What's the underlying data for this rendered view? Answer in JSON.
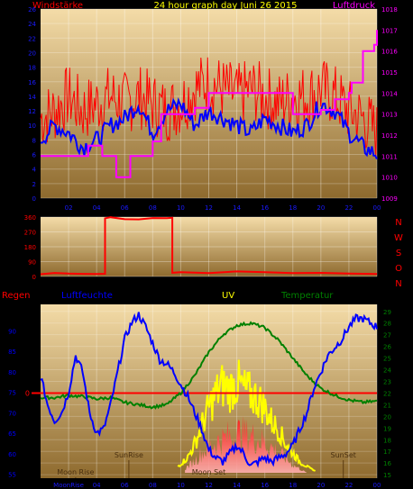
{
  "colors": {
    "background": "#000000",
    "plot_bg_top": "#f4dca8",
    "plot_bg_bottom": "#8e6a2e",
    "wind": "#ff0000",
    "wind_avg": "#0000ff",
    "pressure": "#ff00ff",
    "direction": "#ff0000",
    "humidity": "#0000ff",
    "temperature": "#008000",
    "uv": "#ffff00",
    "axis_blue": "#0000ff",
    "axis_red": "#ff0000",
    "axis_magenta": "#ff00ff",
    "axis_green": "#008000",
    "title_yellow": "#ffff00",
    "tick_text": "#1a1aff"
  },
  "chart_data": [
    {
      "type": "line",
      "title": "24 hour graph day   Juni 26 2015",
      "left_label": "Windstärke",
      "right_label": "Luftdruck",
      "x_ticks": [
        "02",
        "04",
        "06",
        "08",
        "10",
        "12",
        "14",
        "16",
        "18",
        "20",
        "22",
        "00"
      ],
      "y_left": {
        "ticks": [
          0,
          2,
          4,
          6,
          8,
          10,
          12,
          14,
          16,
          18,
          20,
          22,
          24,
          26
        ],
        "lim": [
          0,
          26
        ]
      },
      "y_right": {
        "ticks": [
          1009,
          1010,
          1011,
          1012,
          1013,
          1014,
          1015,
          1016,
          1017,
          1018
        ],
        "lim": [
          1009,
          1018
        ]
      },
      "series": [
        {
          "key": "gust",
          "hours": [
            0,
            1,
            2,
            3,
            4,
            5,
            6,
            7,
            8,
            9,
            10,
            11,
            12,
            13,
            14,
            15,
            16,
            17,
            18,
            19,
            20,
            21,
            22,
            23,
            24
          ],
          "values": [
            11,
            12,
            14,
            12,
            13,
            14,
            13,
            14,
            13,
            12,
            13,
            15,
            16,
            15,
            14,
            15,
            14,
            13,
            14,
            14,
            15,
            14,
            12,
            11,
            9
          ]
        },
        {
          "key": "avg",
          "hours": [
            0,
            1,
            2,
            3,
            4,
            5,
            6,
            7,
            8,
            9,
            10,
            11,
            12,
            13,
            14,
            15,
            16,
            17,
            18,
            19,
            20,
            21,
            22,
            23,
            24
          ],
          "values": [
            8,
            10,
            9,
            7,
            8,
            10,
            11,
            13,
            9,
            12,
            13,
            10,
            12,
            11,
            10,
            9,
            11,
            10,
            9,
            10,
            13,
            12,
            9,
            7,
            6
          ]
        },
        {
          "key": "pressure",
          "hours": [
            0,
            1,
            2,
            3,
            3.4,
            4,
            4.4,
            5,
            5.4,
            6,
            6.4,
            7,
            8,
            8.6,
            10,
            11,
            12,
            13,
            14,
            15,
            16,
            17,
            18,
            20,
            21,
            22,
            22.2,
            23,
            23.8,
            24
          ],
          "values": [
            1011,
            1011,
            1011,
            1011,
            1011.5,
            1011.5,
            1011,
            1011,
            1010,
            1010,
            1011,
            1011,
            1011.7,
            1013,
            1013,
            1013.3,
            1014,
            1014,
            1014,
            1014,
            1014,
            1014,
            1013,
            1013.2,
            1013.7,
            1014,
            1014.5,
            1016,
            1016.3,
            1017
          ]
        }
      ]
    },
    {
      "type": "line",
      "right_labels": [
        "N",
        "W",
        "S",
        "O",
        "N"
      ],
      "y_left": {
        "ticks": [
          0,
          90,
          180,
          270,
          360
        ],
        "lim": [
          0,
          360
        ]
      },
      "series": [
        {
          "key": "direction",
          "hours": [
            0,
            1,
            2,
            3,
            4,
            4.6,
            4.6,
            5,
            6,
            7,
            8,
            9,
            9.4,
            9.4,
            10,
            12,
            14,
            16,
            18,
            20,
            22,
            24
          ],
          "values": [
            15,
            18,
            14,
            20,
            16,
            18,
            350,
            355,
            345,
            348,
            355,
            352,
            355,
            20,
            25,
            22,
            28,
            24,
            18,
            20,
            16,
            14
          ]
        }
      ]
    },
    {
      "type": "line",
      "labels": {
        "rain": "Regen",
        "humidity": "Luftfeuchte",
        "uv": "UV",
        "temperature": "Temperatur"
      },
      "x_ticks": [
        "MoonRise",
        "04",
        "06",
        "08",
        "10",
        "12",
        "14",
        "16",
        "18",
        "20",
        "22",
        "00"
      ],
      "y_left": {
        "ticks": [
          55,
          60,
          65,
          70,
          75,
          80,
          85,
          90
        ],
        "lim": [
          54,
          96.5
        ]
      },
      "y_right": {
        "ticks": [
          15,
          16,
          17,
          18,
          19,
          20,
          21,
          22,
          23,
          24,
          25,
          26,
          27,
          28,
          29
        ],
        "lim": [
          14.7,
          29.6
        ]
      },
      "y_rain": {
        "ticks": [
          0
        ]
      },
      "rain_line": 0,
      "annotations": [
        {
          "text": "SunRise",
          "hour": 6.3
        },
        {
          "text": "SunSet",
          "hour": 21.6
        },
        {
          "text": "Moon Rise",
          "hour": 2.5
        },
        {
          "text": "Moon Set",
          "hour": 12.0
        }
      ],
      "series": [
        {
          "key": "humidity",
          "hours": [
            0,
            0.5,
            1,
            1.5,
            2,
            2.5,
            3,
            3.5,
            4,
            4.5,
            5,
            5.5,
            6,
            6.5,
            7,
            7.5,
            8,
            8.5,
            9,
            9.5,
            10,
            10.5,
            11,
            11.5,
            12,
            12.5,
            13,
            13.5,
            14,
            14.5,
            15,
            15.5,
            16,
            16.5,
            17,
            17.5,
            18,
            18.5,
            19,
            19.5,
            20,
            20.5,
            21,
            21.5,
            22,
            22.5,
            23,
            23.5,
            24
          ],
          "values": [
            79,
            72,
            68,
            70,
            75,
            84,
            80,
            70,
            65,
            66,
            72,
            80,
            88,
            92,
            94,
            91,
            87,
            83,
            82,
            80,
            77,
            74,
            70,
            66,
            61,
            59,
            58,
            60,
            62,
            60,
            57,
            58,
            59,
            58,
            59,
            60,
            62,
            66,
            70,
            76,
            80,
            84,
            86,
            88,
            91,
            93,
            93,
            92,
            91
          ]
        },
        {
          "key": "temperature",
          "hours": [
            0,
            1,
            2,
            3,
            4,
            5,
            6,
            7,
            8,
            9,
            10,
            11,
            12,
            13,
            14,
            15,
            16,
            17,
            18,
            19,
            20,
            21,
            22,
            23,
            24
          ],
          "values": [
            21.6,
            21.6,
            21.8,
            21.7,
            21.5,
            21.6,
            21.2,
            21,
            20.8,
            21,
            22,
            23.5,
            25.5,
            27,
            27.8,
            28,
            27.6,
            26.5,
            25,
            23.5,
            22.4,
            21.8,
            21.4,
            21.2,
            21.3
          ]
        },
        {
          "key": "uv",
          "hours": [
            9.8,
            10.5,
            11,
            11.5,
            12,
            12.5,
            13,
            13.5,
            14,
            14.5,
            15,
            15.5,
            16,
            16.5,
            17,
            17.5,
            18,
            18.5,
            19,
            19.6
          ],
          "values": [
            0.5,
            1.5,
            3,
            5,
            7,
            8.5,
            9.5,
            9,
            9.8,
            9,
            8.5,
            8,
            7,
            5.5,
            4.5,
            3,
            2,
            1,
            0.5,
            0
          ]
        },
        {
          "key": "rain_fill",
          "hours": [
            10.3,
            11,
            11.5,
            12,
            12.5,
            13,
            13.5,
            14,
            14.5,
            15,
            15.5,
            16,
            16.5,
            17,
            17.5,
            18,
            18.5,
            19
          ],
          "values": [
            0.5,
            1.5,
            2.5,
            3.2,
            3.8,
            4.2,
            4.6,
            5,
            4.8,
            4.6,
            4.2,
            3.8,
            3.2,
            2.5,
            1.8,
            1,
            0.5,
            0
          ]
        }
      ]
    }
  ]
}
